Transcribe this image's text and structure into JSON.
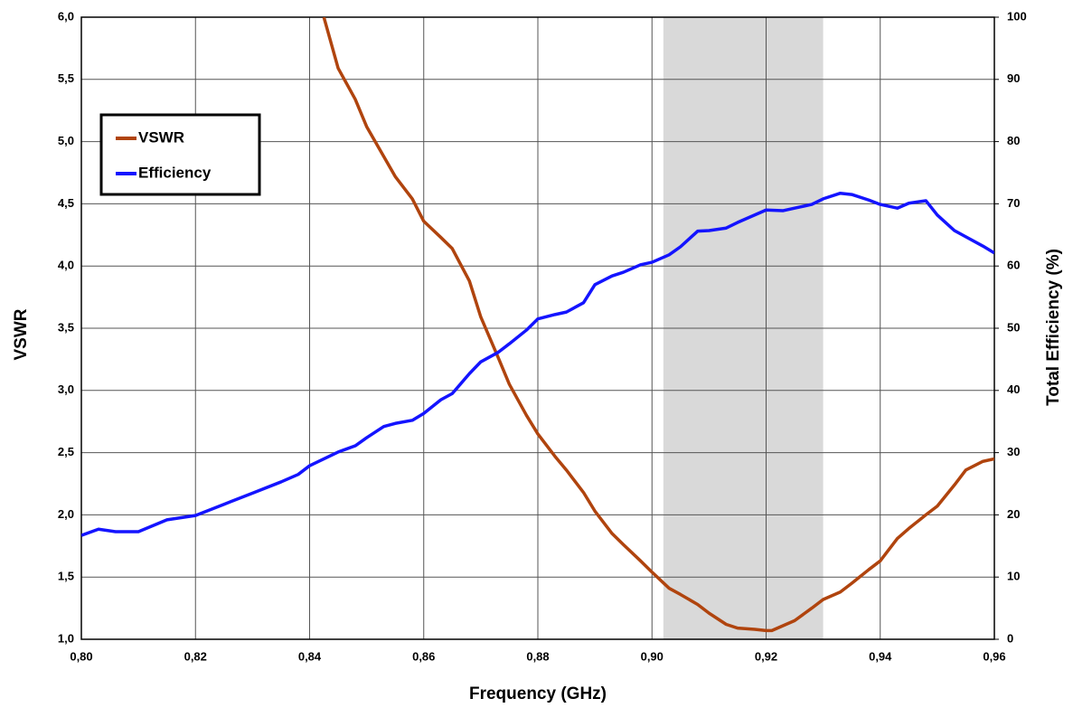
{
  "chart_data": {
    "type": "line",
    "xlabel": "Frequency (GHz)",
    "ylabel": "VSWR",
    "y2label": "Total Efficiency (%)",
    "xlim": [
      0.8,
      0.96
    ],
    "ylim": [
      1.0,
      6.0
    ],
    "y2lim": [
      0,
      100
    ],
    "xticks": [
      {
        "value": 0.8,
        "label": "0,80"
      },
      {
        "value": 0.82,
        "label": "0,82"
      },
      {
        "value": 0.84,
        "label": "0,84"
      },
      {
        "value": 0.86,
        "label": "0,86"
      },
      {
        "value": 0.88,
        "label": "0,88"
      },
      {
        "value": 0.9,
        "label": "0,90"
      },
      {
        "value": 0.92,
        "label": "0,92"
      },
      {
        "value": 0.94,
        "label": "0,94"
      },
      {
        "value": 0.96,
        "label": "0,96"
      }
    ],
    "yticks": [
      {
        "value": 1.0,
        "label": "1,0"
      },
      {
        "value": 1.5,
        "label": "1,5"
      },
      {
        "value": 2.0,
        "label": "2,0"
      },
      {
        "value": 2.5,
        "label": "2,5"
      },
      {
        "value": 3.0,
        "label": "3,0"
      },
      {
        "value": 3.5,
        "label": "3,5"
      },
      {
        "value": 4.0,
        "label": "4,0"
      },
      {
        "value": 4.5,
        "label": "4,5"
      },
      {
        "value": 5.0,
        "label": "5,0"
      },
      {
        "value": 5.5,
        "label": "5,5"
      },
      {
        "value": 6.0,
        "label": "6,0"
      }
    ],
    "y2ticks": [
      0,
      10,
      20,
      30,
      40,
      50,
      60,
      70,
      80,
      90,
      100
    ],
    "grid": true,
    "legend": "upper left",
    "shaded_xrange": [
      0.902,
      0.93
    ],
    "shade_color": "#d9d9d9",
    "series": [
      {
        "name": "VSWR",
        "color": "#b0440e",
        "axis": "y",
        "x": [
          0.8425,
          0.845,
          0.848,
          0.85,
          0.855,
          0.858,
          0.86,
          0.863,
          0.865,
          0.868,
          0.87,
          0.873,
          0.875,
          0.878,
          0.88,
          0.883,
          0.885,
          0.888,
          0.89,
          0.893,
          0.895,
          0.898,
          0.9,
          0.903,
          0.905,
          0.908,
          0.91,
          0.913,
          0.915,
          0.918,
          0.92,
          0.921,
          0.923,
          0.925,
          0.928,
          0.93,
          0.933,
          0.935,
          0.938,
          0.94,
          0.943,
          0.945,
          0.948,
          0.95,
          0.953,
          0.955,
          0.958,
          0.96
        ],
        "values": [
          6.0,
          5.59,
          5.34,
          5.12,
          4.72,
          4.54,
          4.36,
          4.23,
          4.14,
          3.88,
          3.59,
          3.27,
          3.05,
          2.8,
          2.65,
          2.47,
          2.36,
          2.18,
          2.03,
          1.85,
          1.76,
          1.63,
          1.54,
          1.41,
          1.36,
          1.28,
          1.21,
          1.12,
          1.09,
          1.08,
          1.07,
          1.07,
          1.11,
          1.15,
          1.25,
          1.32,
          1.38,
          1.45,
          1.56,
          1.63,
          1.81,
          1.89,
          2.0,
          2.07,
          2.24,
          2.36,
          2.43,
          2.45
        ]
      },
      {
        "name": "Efficiency",
        "color": "#1414ff",
        "axis": "y2",
        "x": [
          0.8,
          0.803,
          0.806,
          0.81,
          0.815,
          0.82,
          0.825,
          0.83,
          0.835,
          0.838,
          0.84,
          0.845,
          0.848,
          0.85,
          0.853,
          0.855,
          0.858,
          0.86,
          0.863,
          0.865,
          0.868,
          0.87,
          0.873,
          0.875,
          0.878,
          0.88,
          0.883,
          0.885,
          0.888,
          0.89,
          0.893,
          0.895,
          0.898,
          0.9,
          0.903,
          0.905,
          0.908,
          0.91,
          0.913,
          0.915,
          0.918,
          0.92,
          0.923,
          0.925,
          0.928,
          0.93,
          0.933,
          0.935,
          0.938,
          0.94,
          0.943,
          0.945,
          0.948,
          0.95,
          0.953,
          0.955,
          0.958,
          0.96
        ],
        "values": [
          16.7,
          17.7,
          17.3,
          17.3,
          19.2,
          19.9,
          21.7,
          23.5,
          25.3,
          26.5,
          27.9,
          30.1,
          31.1,
          32.4,
          34.2,
          34.7,
          35.2,
          36.3,
          38.5,
          39.5,
          42.7,
          44.6,
          46.1,
          47.5,
          49.7,
          51.5,
          52.2,
          52.6,
          54.1,
          57.0,
          58.4,
          59.0,
          60.2,
          60.6,
          61.8,
          63.1,
          65.6,
          65.7,
          66.1,
          67.0,
          68.2,
          69.0,
          68.9,
          69.3,
          69.9,
          70.8,
          71.7,
          71.5,
          70.6,
          69.9,
          69.3,
          70.1,
          70.5,
          68.2,
          65.7,
          64.7,
          63.2,
          62.1
        ]
      }
    ]
  }
}
